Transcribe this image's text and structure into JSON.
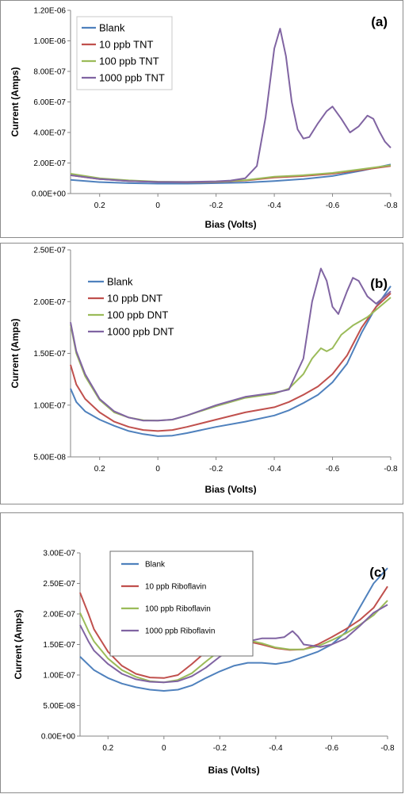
{
  "charts": [
    {
      "type": "line",
      "panel_label": "(a)",
      "xlabel": "Bias (Volts)",
      "ylabel": "Current (Amps)",
      "xlim": [
        0.3,
        -0.8
      ],
      "ylim": [
        0,
        1.2e-06
      ],
      "x_ticks": [
        0.2,
        0,
        -0.2,
        -0.4,
        -0.6,
        -0.8
      ],
      "x_tick_labels": [
        "0.2",
        "0",
        "-0.2",
        "-0.4",
        "-0.6",
        "-0.8"
      ],
      "y_ticks": [
        0,
        2e-07,
        4e-07,
        6e-07,
        8e-07,
        1e-06,
        1.2e-06
      ],
      "y_tick_labels": [
        "0.00E+00",
        "2.00E-07",
        "4.00E-07",
        "6.00E-07",
        "8.00E-07",
        "1.00E-06",
        "1.20E-06"
      ],
      "legend_position": "top-left",
      "series": [
        {
          "name": "Blank",
          "color": "#4f81bd",
          "x": [
            0.3,
            0.2,
            0.1,
            0.0,
            -0.1,
            -0.2,
            -0.3,
            -0.4,
            -0.5,
            -0.6,
            -0.7,
            -0.8
          ],
          "y": [
            9e-08,
            7.5e-08,
            6.8e-08,
            6.5e-08,
            6.5e-08,
            6.8e-08,
            7.2e-08,
            8.2e-08,
            9.5e-08,
            1.15e-07,
            1.5e-07,
            1.9e-07
          ]
        },
        {
          "name": "10 ppb TNT",
          "color": "#c0504d",
          "x": [
            0.3,
            0.2,
            0.1,
            0.0,
            -0.1,
            -0.2,
            -0.3,
            -0.4,
            -0.5,
            -0.6,
            -0.7,
            -0.8
          ],
          "y": [
            1.2e-07,
            9.5e-08,
            8.2e-08,
            7.6e-08,
            7.4e-08,
            7.6e-08,
            8.5e-08,
            1.05e-07,
            1.15e-07,
            1.3e-07,
            1.55e-07,
            1.8e-07
          ]
        },
        {
          "name": "100 ppb TNT",
          "color": "#9bbb59",
          "x": [
            0.3,
            0.2,
            0.1,
            0.0,
            -0.1,
            -0.2,
            -0.3,
            -0.4,
            -0.5,
            -0.6,
            -0.7,
            -0.8
          ],
          "y": [
            1.3e-07,
            1e-07,
            8.6e-08,
            7.8e-08,
            7.6e-08,
            7.8e-08,
            8.8e-08,
            1.1e-07,
            1.2e-07,
            1.35e-07,
            1.6e-07,
            1.85e-07
          ]
        },
        {
          "name": "1000 ppb TNT",
          "color": "#8064a2",
          "x": [
            0.3,
            0.2,
            0.1,
            0.0,
            -0.1,
            -0.2,
            -0.25,
            -0.3,
            -0.34,
            -0.37,
            -0.4,
            -0.42,
            -0.44,
            -0.46,
            -0.48,
            -0.5,
            -0.52,
            -0.55,
            -0.58,
            -0.6,
            -0.63,
            -0.66,
            -0.69,
            -0.72,
            -0.74,
            -0.76,
            -0.78,
            -0.8
          ],
          "y": [
            1.2e-07,
            9.5e-08,
            8.2e-08,
            7.6e-08,
            7.6e-08,
            8e-08,
            8.5e-08,
            1e-07,
            1.8e-07,
            5e-07,
            9.5e-07,
            1.08e-06,
            9e-07,
            6e-07,
            4.2e-07,
            3.6e-07,
            3.7e-07,
            4.6e-07,
            5.4e-07,
            5.7e-07,
            4.9e-07,
            4e-07,
            4.4e-07,
            5.1e-07,
            4.9e-07,
            4.1e-07,
            3.4e-07,
            3e-07
          ]
        }
      ]
    },
    {
      "type": "line",
      "panel_label": "(b)",
      "xlabel": "Bias (Volts)",
      "ylabel": "Current (Amps)",
      "xlim": [
        0.3,
        -0.8
      ],
      "ylim": [
        5e-08,
        2.5e-07
      ],
      "x_ticks": [
        0.2,
        0,
        -0.2,
        -0.4,
        -0.6,
        -0.8
      ],
      "x_tick_labels": [
        "0.2",
        "0",
        "-0.2",
        "-0.4",
        "-0.6",
        "-0.8"
      ],
      "y_ticks": [
        5e-08,
        1e-07,
        1.5e-07,
        2e-07,
        2.5e-07
      ],
      "y_tick_labels": [
        "5.00E-08",
        "1.00E-07",
        "1.50E-07",
        "2.00E-07",
        "2.50E-07"
      ],
      "legend_position": "left",
      "series": [
        {
          "name": "Blank",
          "color": "#4f81bd",
          "x": [
            0.3,
            0.28,
            0.25,
            0.2,
            0.15,
            0.1,
            0.05,
            0.0,
            -0.05,
            -0.1,
            -0.2,
            -0.3,
            -0.4,
            -0.45,
            -0.5,
            -0.55,
            -0.6,
            -0.65,
            -0.7,
            -0.75,
            -0.8
          ],
          "y": [
            1.16e-07,
            1.03e-07,
            9.4e-08,
            8.6e-08,
            8e-08,
            7.5e-08,
            7.2e-08,
            7e-08,
            7.05e-08,
            7.3e-08,
            7.9e-08,
            8.4e-08,
            9e-08,
            9.5e-08,
            1.02e-07,
            1.1e-07,
            1.22e-07,
            1.4e-07,
            1.7e-07,
            1.95e-07,
            2.15e-07
          ]
        },
        {
          "name": "10 ppb DNT",
          "color": "#c0504d",
          "x": [
            0.3,
            0.28,
            0.25,
            0.2,
            0.15,
            0.1,
            0.05,
            0.0,
            -0.05,
            -0.1,
            -0.2,
            -0.3,
            -0.4,
            -0.45,
            -0.5,
            -0.55,
            -0.6,
            -0.65,
            -0.7,
            -0.75,
            -0.8
          ],
          "y": [
            1.39e-07,
            1.2e-07,
            1.06e-07,
            9.3e-08,
            8.4e-08,
            7.9e-08,
            7.6e-08,
            7.5e-08,
            7.6e-08,
            7.9e-08,
            8.6e-08,
            9.3e-08,
            9.8e-08,
            1.03e-07,
            1.1e-07,
            1.18e-07,
            1.3e-07,
            1.48e-07,
            1.75e-07,
            1.95e-07,
            2.08e-07
          ]
        },
        {
          "name": "100 ppb DNT",
          "color": "#9bbb59",
          "x": [
            0.3,
            0.28,
            0.25,
            0.2,
            0.15,
            0.1,
            0.05,
            0.0,
            -0.05,
            -0.1,
            -0.2,
            -0.3,
            -0.4,
            -0.45,
            -0.5,
            -0.53,
            -0.56,
            -0.58,
            -0.6,
            -0.63,
            -0.67,
            -0.72,
            -0.8
          ],
          "y": [
            1.78e-07,
            1.5e-07,
            1.28e-07,
            1.05e-07,
            9.3e-08,
            8.8e-08,
            8.55e-08,
            8.5e-08,
            8.6e-08,
            9e-08,
            9.9e-08,
            1.07e-07,
            1.11e-07,
            1.16e-07,
            1.3e-07,
            1.45e-07,
            1.55e-07,
            1.52e-07,
            1.55e-07,
            1.68e-07,
            1.77e-07,
            1.85e-07,
            2.04e-07
          ]
        },
        {
          "name": "1000 ppb DNT",
          "color": "#8064a2",
          "x": [
            0.3,
            0.28,
            0.25,
            0.2,
            0.15,
            0.1,
            0.05,
            0.0,
            -0.05,
            -0.1,
            -0.2,
            -0.3,
            -0.4,
            -0.45,
            -0.5,
            -0.53,
            -0.56,
            -0.58,
            -0.6,
            -0.62,
            -0.65,
            -0.67,
            -0.69,
            -0.72,
            -0.75,
            -0.8
          ],
          "y": [
            1.8e-07,
            1.52e-07,
            1.3e-07,
            1.06e-07,
            9.4e-08,
            8.8e-08,
            8.5e-08,
            8.5e-08,
            8.6e-08,
            9e-08,
            1e-07,
            1.08e-07,
            1.12e-07,
            1.15e-07,
            1.45e-07,
            2e-07,
            2.32e-07,
            2.2e-07,
            1.95e-07,
            1.88e-07,
            2.1e-07,
            2.23e-07,
            2.2e-07,
            2.05e-07,
            1.98e-07,
            2.1e-07
          ]
        }
      ]
    },
    {
      "type": "line",
      "panel_label": "(c)",
      "xlabel": "Bias (Volts)",
      "ylabel": "Current (Amps)",
      "xlim": [
        0.3,
        -0.8
      ],
      "ylim": [
        0,
        3e-07
      ],
      "x_ticks": [
        0.2,
        0,
        -0.2,
        -0.4,
        -0.6,
        -0.8
      ],
      "x_tick_labels": [
        "0.2",
        "0",
        "-0.2",
        "-0.4",
        "-0.6",
        "-0.8"
      ],
      "y_ticks": [
        0,
        5e-08,
        1e-07,
        1.5e-07,
        2e-07,
        2.5e-07,
        3e-07
      ],
      "y_tick_labels": [
        "0.00E+00",
        "5.00E-08",
        "1.00E-07",
        "1.50E-07",
        "2.00E-07",
        "2.50E-07",
        "3.00E-07"
      ],
      "legend_position": "top-left",
      "series": [
        {
          "name": "Blank",
          "color": "#4f81bd",
          "x": [
            0.3,
            0.25,
            0.2,
            0.15,
            0.1,
            0.05,
            0.0,
            -0.05,
            -0.1,
            -0.15,
            -0.2,
            -0.25,
            -0.3,
            -0.35,
            -0.4,
            -0.45,
            -0.5,
            -0.55,
            -0.6,
            -0.65,
            -0.7,
            -0.75,
            -0.8
          ],
          "y": [
            1.3e-07,
            1.08e-07,
            9.5e-08,
            8.6e-08,
            8e-08,
            7.6e-08,
            7.4e-08,
            7.6e-08,
            8.3e-08,
            9.5e-08,
            1.06e-07,
            1.15e-07,
            1.2e-07,
            1.2e-07,
            1.18e-07,
            1.22e-07,
            1.3e-07,
            1.38e-07,
            1.5e-07,
            1.7e-07,
            2.1e-07,
            2.5e-07,
            2.75e-07
          ]
        },
        {
          "name": "10 ppb Riboflavin",
          "color": "#c0504d",
          "x": [
            0.3,
            0.27,
            0.25,
            0.2,
            0.15,
            0.1,
            0.05,
            0.0,
            -0.05,
            -0.1,
            -0.15,
            -0.2,
            -0.25,
            -0.3,
            -0.35,
            -0.4,
            -0.45,
            -0.5,
            -0.55,
            -0.6,
            -0.65,
            -0.7,
            -0.75,
            -0.8
          ],
          "y": [
            2.35e-07,
            2e-07,
            1.75e-07,
            1.38e-07,
            1.15e-07,
            1.02e-07,
            9.6e-08,
            9.5e-08,
            1e-07,
            1.18e-07,
            1.38e-07,
            1.52e-07,
            1.57e-07,
            1.55e-07,
            1.5e-07,
            1.44e-07,
            1.41e-07,
            1.42e-07,
            1.5e-07,
            1.62e-07,
            1.75e-07,
            1.9e-07,
            2.1e-07,
            2.45e-07
          ]
        },
        {
          "name": "100 ppb Riboflavin",
          "color": "#9bbb59",
          "x": [
            0.3,
            0.27,
            0.25,
            0.2,
            0.15,
            0.1,
            0.05,
            0.0,
            -0.05,
            -0.1,
            -0.15,
            -0.2,
            -0.25,
            -0.3,
            -0.35,
            -0.4,
            -0.45,
            -0.5,
            -0.55,
            -0.6,
            -0.65,
            -0.7,
            -0.75,
            -0.8
          ],
          "y": [
            2.02e-07,
            1.72e-07,
            1.55e-07,
            1.27e-07,
            1.08e-07,
            9.7e-08,
            9e-08,
            8.8e-08,
            9.2e-08,
            1.03e-07,
            1.22e-07,
            1.4e-07,
            1.53e-07,
            1.57e-07,
            1.52e-07,
            1.45e-07,
            1.42e-07,
            1.42e-07,
            1.47e-07,
            1.57e-07,
            1.68e-07,
            1.82e-07,
            1.98e-07,
            2.22e-07
          ]
        },
        {
          "name": "1000 ppb Riboflavin",
          "color": "#8064a2",
          "x": [
            0.3,
            0.27,
            0.25,
            0.2,
            0.15,
            0.1,
            0.05,
            0.0,
            -0.05,
            -0.1,
            -0.15,
            -0.2,
            -0.25,
            -0.3,
            -0.35,
            -0.4,
            -0.43,
            -0.46,
            -0.48,
            -0.5,
            -0.53,
            -0.56,
            -0.6,
            -0.65,
            -0.7,
            -0.75,
            -0.8
          ],
          "y": [
            1.82e-07,
            1.55e-07,
            1.4e-07,
            1.18e-07,
            1.02e-07,
            9.3e-08,
            8.9e-08,
            8.8e-08,
            9e-08,
            9.8e-08,
            1.12e-07,
            1.3e-07,
            1.45e-07,
            1.55e-07,
            1.6e-07,
            1.6e-07,
            1.62e-07,
            1.72e-07,
            1.63e-07,
            1.5e-07,
            1.48e-07,
            1.46e-07,
            1.5e-07,
            1.6e-07,
            1.8e-07,
            2.02e-07,
            2.15e-07
          ]
        }
      ]
    }
  ]
}
